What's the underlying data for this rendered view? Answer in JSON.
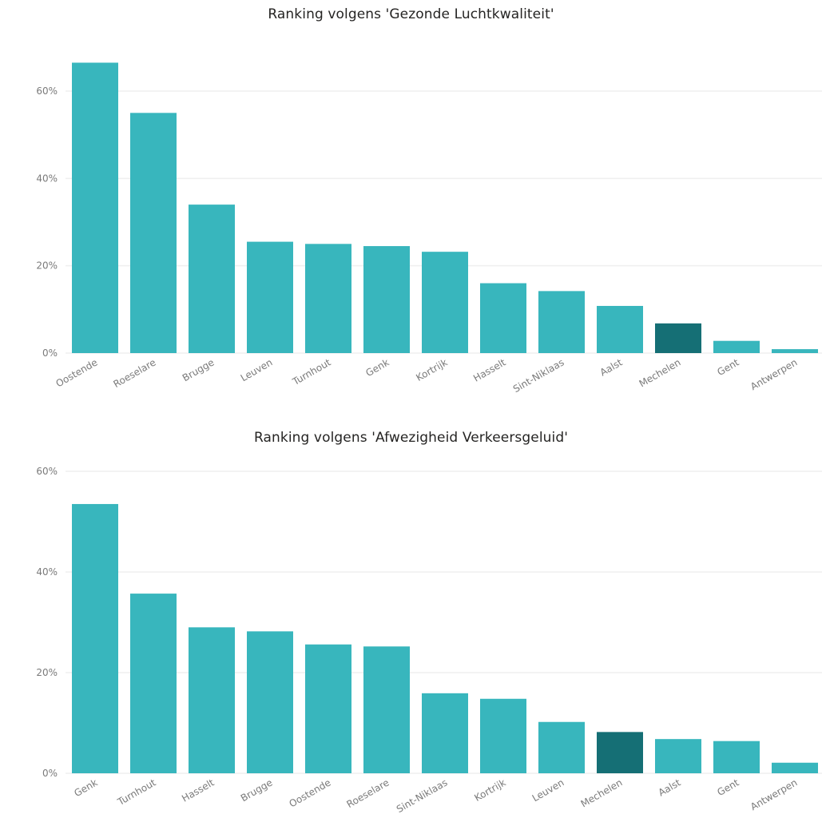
{
  "colors": {
    "bar": "#38b6bd",
    "highlight": "#156f75",
    "gridline": "#efefef",
    "axis_text": "#7a7a7a",
    "title_text": "#252423"
  },
  "chart_data": [
    {
      "type": "bar",
      "title": "Ranking volgens 'Gezonde Luchtkwaliteit'",
      "categories": [
        "Oostende",
        "Roeselare",
        "Brugge",
        "Leuven",
        "Turnhout",
        "Genk",
        "Kortrijk",
        "Hasselt",
        "Sint-Niklaas",
        "Aalst",
        "Mechelen",
        "Gent",
        "Antwerpen"
      ],
      "values": [
        66.5,
        55.0,
        34.0,
        25.5,
        25.0,
        24.5,
        23.2,
        16.0,
        14.2,
        10.8,
        6.8,
        2.8,
        0.9
      ],
      "highlight": [
        "Mechelen"
      ],
      "ylim": [
        0,
        60
      ],
      "yticks": [
        0,
        20,
        40,
        60
      ],
      "ytick_labels": [
        "0%",
        "20%",
        "40%",
        "60%"
      ],
      "grid": true,
      "xlabel": "",
      "ylabel": ""
    },
    {
      "type": "bar",
      "title": "Ranking volgens 'Afwezigheid Verkeersgeluid'",
      "categories": [
        "Genk",
        "Turnhout",
        "Hasselt",
        "Brugge",
        "Oostende",
        "Roeselare",
        "Sint-Niklaas",
        "Kortrijk",
        "Leuven",
        "Mechelen",
        "Aalst",
        "Gent",
        "Antwerpen"
      ],
      "values": [
        53.5,
        35.7,
        29.0,
        28.2,
        25.6,
        25.2,
        15.9,
        14.8,
        10.2,
        8.2,
        6.8,
        6.4,
        2.1
      ],
      "highlight": [
        "Mechelen"
      ],
      "ylim": [
        0,
        60
      ],
      "yticks": [
        0,
        20,
        40,
        60
      ],
      "ytick_labels": [
        "0%",
        "20%",
        "40%",
        "60%"
      ],
      "grid": true,
      "xlabel": "",
      "ylabel": ""
    }
  ]
}
